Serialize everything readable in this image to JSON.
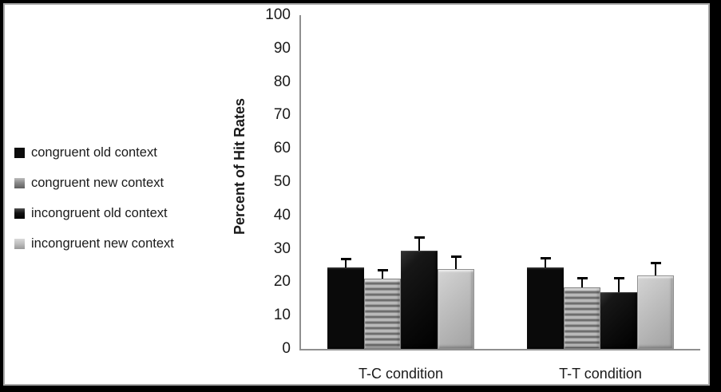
{
  "chart_data": {
    "type": "bar",
    "title": "",
    "xlabel": "",
    "ylabel": "Percent of Hit Rates",
    "ylim": [
      0,
      100
    ],
    "yticks": [
      0,
      10,
      20,
      30,
      40,
      50,
      60,
      70,
      80,
      90,
      100
    ],
    "grid": false,
    "legend_position": "left",
    "categories": [
      "T-C condition",
      "T-T condition"
    ],
    "series": [
      {
        "name": "congruent old context",
        "style": "solid-black",
        "color": "#0a0a0a",
        "values": [
          24.5,
          24.5
        ],
        "errors": [
          2.8,
          3.0
        ]
      },
      {
        "name": "congruent new context",
        "style": "horizontal-stripes",
        "color": "#8f8f8f",
        "values": [
          21.0,
          18.5
        ],
        "errors": [
          3.0,
          3.0
        ]
      },
      {
        "name": "incongruent old context",
        "style": "dark-textured",
        "color": "#141414",
        "values": [
          29.5,
          17.0
        ],
        "errors": [
          4.2,
          4.5
        ]
      },
      {
        "name": "incongruent new context",
        "style": "light-gray",
        "color": "#b5b5b5",
        "values": [
          24.0,
          22.0
        ],
        "errors": [
          4.0,
          4.0
        ]
      }
    ],
    "error_bar_color": "#000000",
    "axis_color": "#8f8f8f",
    "frame_border_color": "#000000",
    "inner_border_color": "#a8a8a8",
    "background_color": "#ffffff"
  }
}
